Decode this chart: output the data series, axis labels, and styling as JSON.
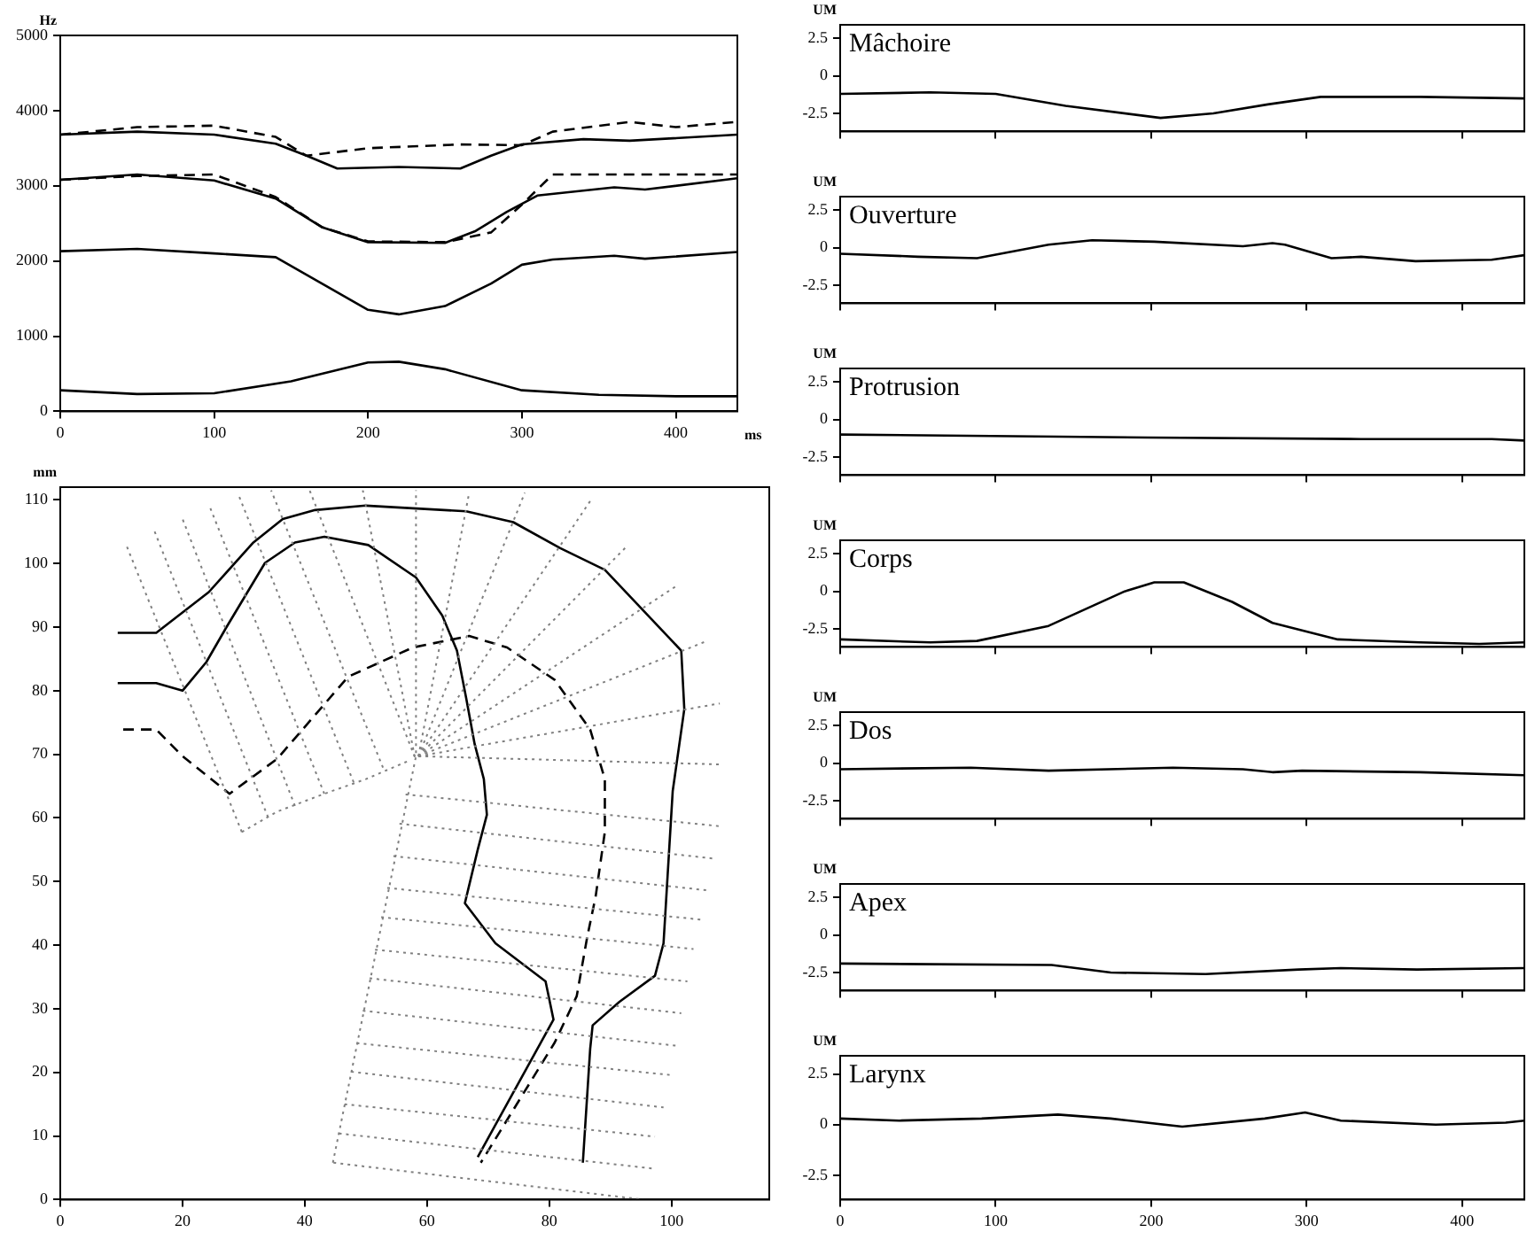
{
  "chart_data": [
    {
      "type": "line",
      "ylabel": "Hz",
      "xlabel": "ms",
      "xlim": [
        0,
        440
      ],
      "ylim": [
        0,
        5000
      ],
      "xticks": [
        0,
        100,
        200,
        300,
        400
      ],
      "yticks": [
        0,
        1000,
        2000,
        3000,
        4000,
        5000
      ],
      "series": [
        {
          "color": "#000000",
          "line_style": "solid",
          "x": [
            0,
            50,
            100,
            150,
            200,
            220,
            250,
            300,
            350,
            400,
            440
          ],
          "values": [
            280,
            230,
            240,
            400,
            650,
            660,
            560,
            280,
            220,
            200,
            200
          ]
        },
        {
          "color": "#000000",
          "line_style": "solid",
          "x": [
            0,
            50,
            100,
            140,
            170,
            200,
            220,
            250,
            280,
            300,
            320,
            360,
            380,
            440
          ],
          "values": [
            2130,
            2160,
            2100,
            2050,
            1700,
            1350,
            1290,
            1400,
            1700,
            1950,
            2020,
            2070,
            2030,
            2120
          ]
        },
        {
          "color": "#000000",
          "line_style": "solid",
          "x": [
            0,
            50,
            100,
            140,
            170,
            200,
            250,
            270,
            290,
            310,
            360,
            380,
            440
          ],
          "values": [
            3080,
            3150,
            3070,
            2830,
            2450,
            2250,
            2240,
            2400,
            2650,
            2870,
            2980,
            2950,
            3100
          ]
        },
        {
          "color": "#000000",
          "line_style": "dashed",
          "x": [
            0,
            50,
            100,
            140,
            170,
            200,
            250,
            280,
            300,
            320,
            360,
            440
          ],
          "values": [
            3080,
            3130,
            3150,
            2850,
            2450,
            2260,
            2250,
            2380,
            2750,
            3150,
            3150,
            3150
          ]
        },
        {
          "color": "#000000",
          "line_style": "solid",
          "x": [
            0,
            50,
            100,
            140,
            160,
            180,
            220,
            260,
            280,
            300,
            340,
            370,
            440
          ],
          "values": [
            3680,
            3720,
            3680,
            3560,
            3400,
            3230,
            3250,
            3230,
            3400,
            3550,
            3620,
            3600,
            3680
          ]
        },
        {
          "color": "#000000",
          "line_style": "dashed",
          "x": [
            0,
            50,
            100,
            140,
            160,
            200,
            260,
            300,
            320,
            370,
            400,
            440
          ],
          "values": [
            3680,
            3780,
            3800,
            3650,
            3400,
            3500,
            3550,
            3540,
            3720,
            3850,
            3780,
            3850
          ]
        }
      ]
    },
    {
      "type": "line",
      "ylabel": "mm",
      "xlim": [
        0,
        116
      ],
      "ylim": [
        0,
        112
      ],
      "xticks": [
        0,
        20,
        40,
        60,
        80,
        100
      ],
      "yticks": [
        0,
        10,
        20,
        30,
        40,
        50,
        60,
        70,
        80,
        90,
        100,
        110
      ],
      "series": [
        {
          "color": "#808080",
          "line_style": "dotted",
          "x": [
            29.7,
            10.8
          ],
          "values": [
            57.8,
            102.9
          ]
        },
        {
          "color": "#808080",
          "line_style": "dotted",
          "x": [
            34.0,
            15.2
          ],
          "values": [
            60.1,
            105.6
          ]
        },
        {
          "color": "#808080",
          "line_style": "dotted",
          "x": [
            38.4,
            20.0
          ],
          "values": [
            61.9,
            107.0
          ]
        },
        {
          "color": "#808080",
          "line_style": "dotted",
          "x": [
            43.2,
            24.3
          ],
          "values": [
            63.8,
            109.3
          ]
        },
        {
          "color": "#808080",
          "line_style": "dotted",
          "x": [
            48.0,
            29.2
          ],
          "values": [
            65.6,
            110.7
          ]
        },
        {
          "color": "#808080",
          "line_style": "dotted",
          "x": [
            52.8,
            34.5
          ],
          "values": [
            67.9,
            111.5
          ]
        },
        {
          "color": "#808080",
          "line_style": "dotted",
          "x": [
            58.0,
            40.8
          ],
          "values": [
            69.6,
            111.5
          ]
        },
        {
          "color": "#808080",
          "line_style": "dotted",
          "x": [
            58.0,
            49.5
          ],
          "values": [
            69.6,
            111.5
          ]
        },
        {
          "color": "#808080",
          "line_style": "dotted",
          "x": [
            58.6,
            66.9
          ],
          "values": [
            69.7,
            111.1
          ]
        },
        {
          "color": "#808080",
          "line_style": "dotted",
          "x": [
            58.6,
            76.0
          ],
          "values": [
            69.7,
            111.1
          ]
        },
        {
          "color": "#808080",
          "line_style": "dotted",
          "x": [
            58.6,
            86.7
          ],
          "values": [
            69.7,
            109.8
          ]
        },
        {
          "color": "#808080",
          "line_style": "dotted",
          "x": [
            58.6,
            92.9
          ],
          "values": [
            69.7,
            102.9
          ]
        },
        {
          "color": "#808080",
          "line_style": "dotted",
          "x": [
            58.6,
            100.7
          ],
          "values": [
            69.7,
            96.4
          ]
        },
        {
          "color": "#808080",
          "line_style": "dotted",
          "x": [
            58.6,
            105.5
          ],
          "values": [
            69.7,
            87.7
          ]
        },
        {
          "color": "#808080",
          "line_style": "dotted",
          "x": [
            58.6,
            107.9
          ],
          "values": [
            69.7,
            78.0
          ]
        },
        {
          "color": "#808080",
          "line_style": "dotted",
          "x": [
            58.6,
            108.4
          ],
          "values": [
            69.7,
            68.4
          ]
        },
        {
          "color": "#808080",
          "line_style": "dotted",
          "x": [
            56.5,
            107.9
          ],
          "values": [
            63.7,
            58.7
          ]
        },
        {
          "color": "#808080",
          "line_style": "dotted",
          "x": [
            55.5,
            107.0
          ],
          "values": [
            59.1,
            53.6
          ]
        },
        {
          "color": "#808080",
          "line_style": "dotted",
          "x": [
            54.5,
            106.0
          ],
          "values": [
            54.0,
            48.6
          ]
        },
        {
          "color": "#808080",
          "line_style": "dotted",
          "x": [
            53.5,
            105.0
          ],
          "values": [
            49.0,
            44.0
          ]
        },
        {
          "color": "#808080",
          "line_style": "dotted",
          "x": [
            52.5,
            103.6
          ],
          "values": [
            44.4,
            39.4
          ]
        },
        {
          "color": "#808080",
          "line_style": "dotted",
          "x": [
            51.5,
            102.6
          ],
          "values": [
            39.3,
            34.3
          ]
        },
        {
          "color": "#808080",
          "line_style": "dotted",
          "x": [
            50.6,
            101.6
          ],
          "values": [
            34.8,
            29.3
          ]
        },
        {
          "color": "#808080",
          "line_style": "dotted",
          "x": [
            49.5,
            100.7
          ],
          "values": [
            29.7,
            24.2
          ]
        },
        {
          "color": "#808080",
          "line_style": "dotted",
          "x": [
            48.5,
            99.7
          ],
          "values": [
            24.6,
            19.6
          ]
        },
        {
          "color": "#808080",
          "line_style": "dotted",
          "x": [
            47.6,
            98.7
          ],
          "values": [
            20.1,
            14.5
          ]
        },
        {
          "color": "#808080",
          "line_style": "dotted",
          "x": [
            46.5,
            97.3
          ],
          "values": [
            15.0,
            9.9
          ]
        },
        {
          "color": "#808080",
          "line_style": "dotted",
          "x": [
            45.6,
            96.8
          ],
          "values": [
            10.4,
            4.9
          ]
        },
        {
          "color": "#808080",
          "line_style": "dotted",
          "x": [
            44.7,
            95.4
          ],
          "values": [
            5.8,
            0
          ]
        },
        {
          "color": "#808080",
          "line_style": "dotted",
          "x": [
            44.6,
            58.2,
            58.2
          ],
          "values": [
            5.8,
            69.7,
            111.5
          ]
        },
        {
          "color": "#808080",
          "line_style": "dotted",
          "x": [
            29.7,
            35.5,
            43.2,
            50.0,
            56.8
          ],
          "values": [
            57.8,
            61.0,
            63.8,
            66.1,
            68.9
          ]
        },
        {
          "color": "#000000",
          "line_style": "solid",
          "x": [
            9.4,
            15.7,
            24.3,
            31.6,
            36.4,
            41.7,
            50.0,
            66.4,
            74.1,
            81.8,
            89.1,
            101.6,
            102.1,
            100.2,
            98.7,
            97.3,
            91.5,
            87.1,
            86.7,
            85.5
          ],
          "values": [
            89.1,
            89.1,
            95.5,
            103.3,
            107.0,
            108.4,
            109.1,
            108.2,
            106.5,
            102.4,
            99.0,
            86.3,
            77.1,
            64.2,
            40.3,
            35.2,
            31.1,
            27.4,
            23.7,
            5.8
          ]
        },
        {
          "color": "#000000",
          "line_style": "solid",
          "x": [
            9.4,
            15.7,
            20.0,
            23.9,
            27.2,
            33.5,
            38.4,
            43.2,
            50.4,
            58.2,
            62.5,
            64.9,
            66.4,
            67.8,
            69.3,
            69.8,
            68.3,
            66.2,
            71.2,
            79.4,
            80.7,
            68.3
          ],
          "values": [
            81.2,
            81.2,
            80.0,
            84.5,
            90.0,
            100.1,
            103.3,
            104.2,
            102.9,
            97.8,
            91.8,
            86.3,
            78.9,
            71.6,
            66.1,
            60.5,
            55.0,
            46.6,
            40.3,
            34.3,
            28.3,
            6.7
          ]
        },
        {
          "color": "#000000",
          "line_style": "dashed",
          "x": [
            10.3,
            15.7,
            20.0,
            27.7,
            35.5,
            47.1,
            57.7,
            66.9,
            73.1,
            80.9,
            86.7,
            89.1,
            89.1,
            87.6,
            86.2,
            84.5,
            80.9,
            68.8
          ],
          "values": [
            73.9,
            73.9,
            69.7,
            63.8,
            69.3,
            82.2,
            86.8,
            88.6,
            86.8,
            81.7,
            73.9,
            66.1,
            57.8,
            47.7,
            41.2,
            32.0,
            24.7,
            5.8
          ]
        }
      ]
    },
    {
      "type": "line",
      "title": "Mâchoire",
      "ylabel": "UM",
      "tick_labels": "y",
      "xlim": [
        0,
        440
      ],
      "ylim": [
        -3.7,
        3.4
      ],
      "xticks": [
        0,
        100,
        200,
        300,
        400
      ],
      "yticks": [
        -2.5,
        0,
        2.5
      ],
      "series": [
        {
          "color": "#000000",
          "line_style": "solid",
          "x": [
            0,
            58,
            100,
            145,
            206,
            240,
            275,
            309,
            373,
            440
          ],
          "values": [
            -1.2,
            -1.1,
            -1.2,
            -2.0,
            -2.8,
            -2.5,
            -1.9,
            -1.4,
            -1.4,
            -1.5
          ]
        }
      ]
    },
    {
      "type": "line",
      "title": "Ouverture",
      "ylabel": "UM",
      "tick_labels": "y",
      "xlim": [
        0,
        440
      ],
      "ylim": [
        -3.7,
        3.4
      ],
      "xticks": [
        0,
        100,
        200,
        300,
        400
      ],
      "yticks": [
        -2.5,
        0,
        2.5
      ],
      "series": [
        {
          "color": "#000000",
          "line_style": "solid",
          "x": [
            0,
            50,
            88,
            134,
            162,
            202,
            259,
            278,
            286,
            316,
            335,
            370,
            419,
            440
          ],
          "values": [
            -0.4,
            -0.6,
            -0.7,
            0.2,
            0.5,
            0.4,
            0.1,
            0.3,
            0.2,
            -0.7,
            -0.6,
            -0.9,
            -0.8,
            -0.5
          ]
        }
      ]
    },
    {
      "type": "line",
      "title": "Protrusion",
      "ylabel": "UM",
      "tick_labels": "y",
      "xlim": [
        0,
        440
      ],
      "ylim": [
        -3.7,
        3.4
      ],
      "xticks": [
        0,
        100,
        200,
        300,
        400
      ],
      "yticks": [
        -2.5,
        0,
        2.5
      ],
      "series": [
        {
          "color": "#000000",
          "line_style": "solid",
          "x": [
            0,
            198,
            335,
            419,
            440
          ],
          "values": [
            -1.0,
            -1.2,
            -1.3,
            -1.3,
            -1.4
          ]
        }
      ]
    },
    {
      "type": "line",
      "title": "Corps",
      "ylabel": "UM",
      "tick_labels": "y",
      "xlim": [
        0,
        440
      ],
      "ylim": [
        -3.7,
        3.4
      ],
      "xticks": [
        0,
        100,
        200,
        300,
        400
      ],
      "yticks": [
        -2.5,
        0,
        2.5
      ],
      "series": [
        {
          "color": "#000000",
          "line_style": "solid",
          "x": [
            0,
            58,
            88,
            134,
            183,
            202,
            221,
            252,
            278,
            320,
            373,
            411,
            440
          ],
          "values": [
            -3.2,
            -3.4,
            -3.3,
            -2.3,
            0,
            0.6,
            0.6,
            -0.7,
            -2.1,
            -3.2,
            -3.4,
            -3.5,
            -3.4
          ]
        }
      ]
    },
    {
      "type": "line",
      "title": "Dos",
      "ylabel": "UM",
      "tick_labels": "y",
      "xlim": [
        0,
        440
      ],
      "ylim": [
        -3.7,
        3.4
      ],
      "xticks": [
        0,
        100,
        200,
        300,
        400
      ],
      "yticks": [
        -2.5,
        0,
        2.5
      ],
      "series": [
        {
          "color": "#000000",
          "line_style": "solid",
          "x": [
            0,
            84,
            134,
            214,
            259,
            278,
            297,
            373,
            440
          ],
          "values": [
            -0.4,
            -0.3,
            -0.5,
            -0.3,
            -0.4,
            -0.6,
            -0.5,
            -0.6,
            -0.8
          ]
        }
      ]
    },
    {
      "type": "line",
      "title": "Apex",
      "ylabel": "UM",
      "tick_labels": "y",
      "xlim": [
        0,
        440
      ],
      "ylim": [
        -3.7,
        3.4
      ],
      "xticks": [
        0,
        100,
        200,
        300,
        400
      ],
      "yticks": [
        -2.5,
        0,
        2.5
      ],
      "series": [
        {
          "color": "#000000",
          "line_style": "solid",
          "x": [
            0,
            136,
            174,
            235,
            295,
            322,
            371,
            440
          ],
          "values": [
            -1.9,
            -2.0,
            -2.5,
            -2.6,
            -2.3,
            -2.2,
            -2.3,
            -2.2
          ]
        }
      ]
    },
    {
      "type": "line",
      "title": "Larynx",
      "ylabel": "UM",
      "xlim": [
        0,
        440
      ],
      "ylim": [
        -3.7,
        3.4
      ],
      "xticks": [
        0,
        100,
        200,
        300,
        400
      ],
      "yticks": [
        -2.5,
        0,
        2.5
      ],
      "series": [
        {
          "color": "#000000",
          "line_style": "solid",
          "x": [
            0,
            38,
            91,
            140,
            174,
            220,
            273,
            299,
            322,
            383,
            428,
            440
          ],
          "values": [
            0.3,
            0.2,
            0.3,
            0.5,
            0.3,
            -0.1,
            0.3,
            0.6,
            0.2,
            0,
            0.1,
            0.2
          ]
        }
      ]
    }
  ]
}
